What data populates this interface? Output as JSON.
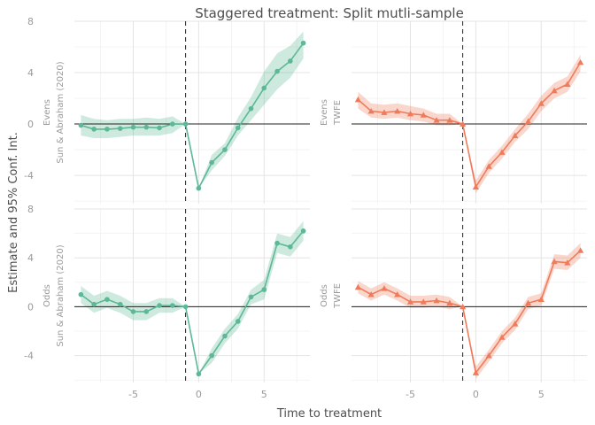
{
  "chart_data": {
    "type": "line",
    "title": "Staggered treatment: Split mutli-sample",
    "xlabel": "Time to treatment",
    "ylabel": "Estimate and 95% Conf. Int.",
    "xlim": [
      -9.5,
      8.5
    ],
    "ylim": [
      -6.2,
      8.0
    ],
    "x_ticks": [
      -5,
      0,
      5
    ],
    "y_ticks": [
      -4,
      0,
      4,
      8
    ],
    "reference_x": -1,
    "reference_y": 0,
    "rows": [
      "Evens",
      "Odds"
    ],
    "columns": [
      "Sun & Abraham (2020)",
      "TWFE"
    ],
    "colors": {
      "Sun & Abraham (2020)": "#5cb896",
      "TWFE": "#f07b5a"
    },
    "panels": [
      {
        "row": "Evens",
        "column": "Sun & Abraham (2020)",
        "marker": "circle",
        "x": [
          -9,
          -8,
          -7,
          -6,
          -5,
          -4,
          -3,
          -2,
          -1,
          0,
          1,
          2,
          3,
          4,
          5,
          6,
          7,
          8
        ],
        "estimate": [
          -0.1,
          -0.4,
          -0.4,
          -0.35,
          -0.25,
          -0.25,
          -0.3,
          0.0,
          0.0,
          -5.0,
          -3.0,
          -2.0,
          -0.3,
          1.2,
          2.8,
          4.1,
          4.9,
          6.3
        ],
        "ci_low": [
          -0.9,
          -1.1,
          -1.1,
          -1.0,
          -0.9,
          -0.9,
          -0.9,
          -0.7,
          0.0,
          -5.0,
          -3.6,
          -2.5,
          -0.9,
          0.3,
          1.5,
          2.7,
          3.6,
          5.1
        ],
        "ci_high": [
          0.7,
          0.4,
          0.3,
          0.4,
          0.4,
          0.5,
          0.4,
          0.6,
          0.0,
          -5.0,
          -2.4,
          -1.5,
          0.5,
          2.1,
          4.1,
          5.5,
          6.1,
          7.2
        ]
      },
      {
        "row": "Evens",
        "column": "TWFE",
        "marker": "triangle",
        "x": [
          -9,
          -8,
          -7,
          -6,
          -5,
          -4,
          -3,
          -2,
          -1,
          0,
          1,
          2,
          3,
          4,
          5,
          6,
          7,
          8
        ],
        "estimate": [
          1.9,
          1.0,
          0.9,
          1.0,
          0.8,
          0.7,
          0.3,
          0.3,
          0.0,
          -4.9,
          -3.3,
          -2.2,
          -0.9,
          0.2,
          1.6,
          2.6,
          3.1,
          4.8
        ],
        "ci_low": [
          1.2,
          0.5,
          0.4,
          0.5,
          0.3,
          0.2,
          -0.1,
          -0.1,
          0.0,
          -5.4,
          -3.8,
          -2.7,
          -1.4,
          -0.4,
          1.0,
          2.0,
          2.5,
          4.1
        ],
        "ci_high": [
          2.5,
          1.6,
          1.5,
          1.6,
          1.4,
          1.2,
          0.8,
          0.8,
          0.0,
          -4.4,
          -2.8,
          -1.7,
          -0.4,
          0.8,
          2.2,
          3.2,
          3.7,
          5.4
        ]
      },
      {
        "row": "Odds",
        "column": "Sun & Abraham (2020)",
        "marker": "circle",
        "x": [
          -9,
          -8,
          -7,
          -6,
          -5,
          -4,
          -3,
          -2,
          -1,
          0,
          1,
          2,
          3,
          4,
          5,
          6,
          7,
          8
        ],
        "estimate": [
          1.0,
          0.2,
          0.6,
          0.2,
          -0.4,
          -0.4,
          0.1,
          0.1,
          0.0,
          -5.5,
          -4.0,
          -2.4,
          -1.2,
          0.8,
          1.4,
          5.2,
          4.9,
          6.2
        ],
        "ci_low": [
          0.3,
          -0.5,
          -0.1,
          -0.5,
          -1.1,
          -1.1,
          -0.5,
          -0.5,
          0.0,
          -5.5,
          -4.6,
          -3.0,
          -1.8,
          0.2,
          0.6,
          4.4,
          4.1,
          5.4
        ],
        "ci_high": [
          1.7,
          0.9,
          1.3,
          0.9,
          0.3,
          0.3,
          0.7,
          0.7,
          0.0,
          -5.5,
          -3.4,
          -1.8,
          -0.6,
          1.4,
          2.2,
          6.0,
          5.7,
          7.0
        ]
      },
      {
        "row": "Odds",
        "column": "TWFE",
        "marker": "triangle",
        "x": [
          -9,
          -8,
          -7,
          -6,
          -5,
          -4,
          -3,
          -2,
          -1,
          0,
          1,
          2,
          3,
          4,
          5,
          6,
          7,
          8
        ],
        "estimate": [
          1.6,
          1.0,
          1.5,
          1.0,
          0.4,
          0.4,
          0.5,
          0.3,
          0.0,
          -5.4,
          -4.0,
          -2.5,
          -1.4,
          0.3,
          0.6,
          3.7,
          3.6,
          4.6
        ],
        "ci_low": [
          1.1,
          0.5,
          1.0,
          0.5,
          -0.1,
          -0.1,
          0.0,
          -0.2,
          0.0,
          -5.9,
          -4.5,
          -3.0,
          -1.9,
          -0.2,
          0.1,
          3.1,
          3.0,
          4.0
        ],
        "ci_high": [
          2.1,
          1.5,
          2.0,
          1.5,
          0.9,
          0.9,
          1.0,
          0.8,
          0.0,
          -4.9,
          -3.5,
          -2.0,
          -0.9,
          0.8,
          1.1,
          4.3,
          4.2,
          5.2
        ]
      }
    ]
  }
}
